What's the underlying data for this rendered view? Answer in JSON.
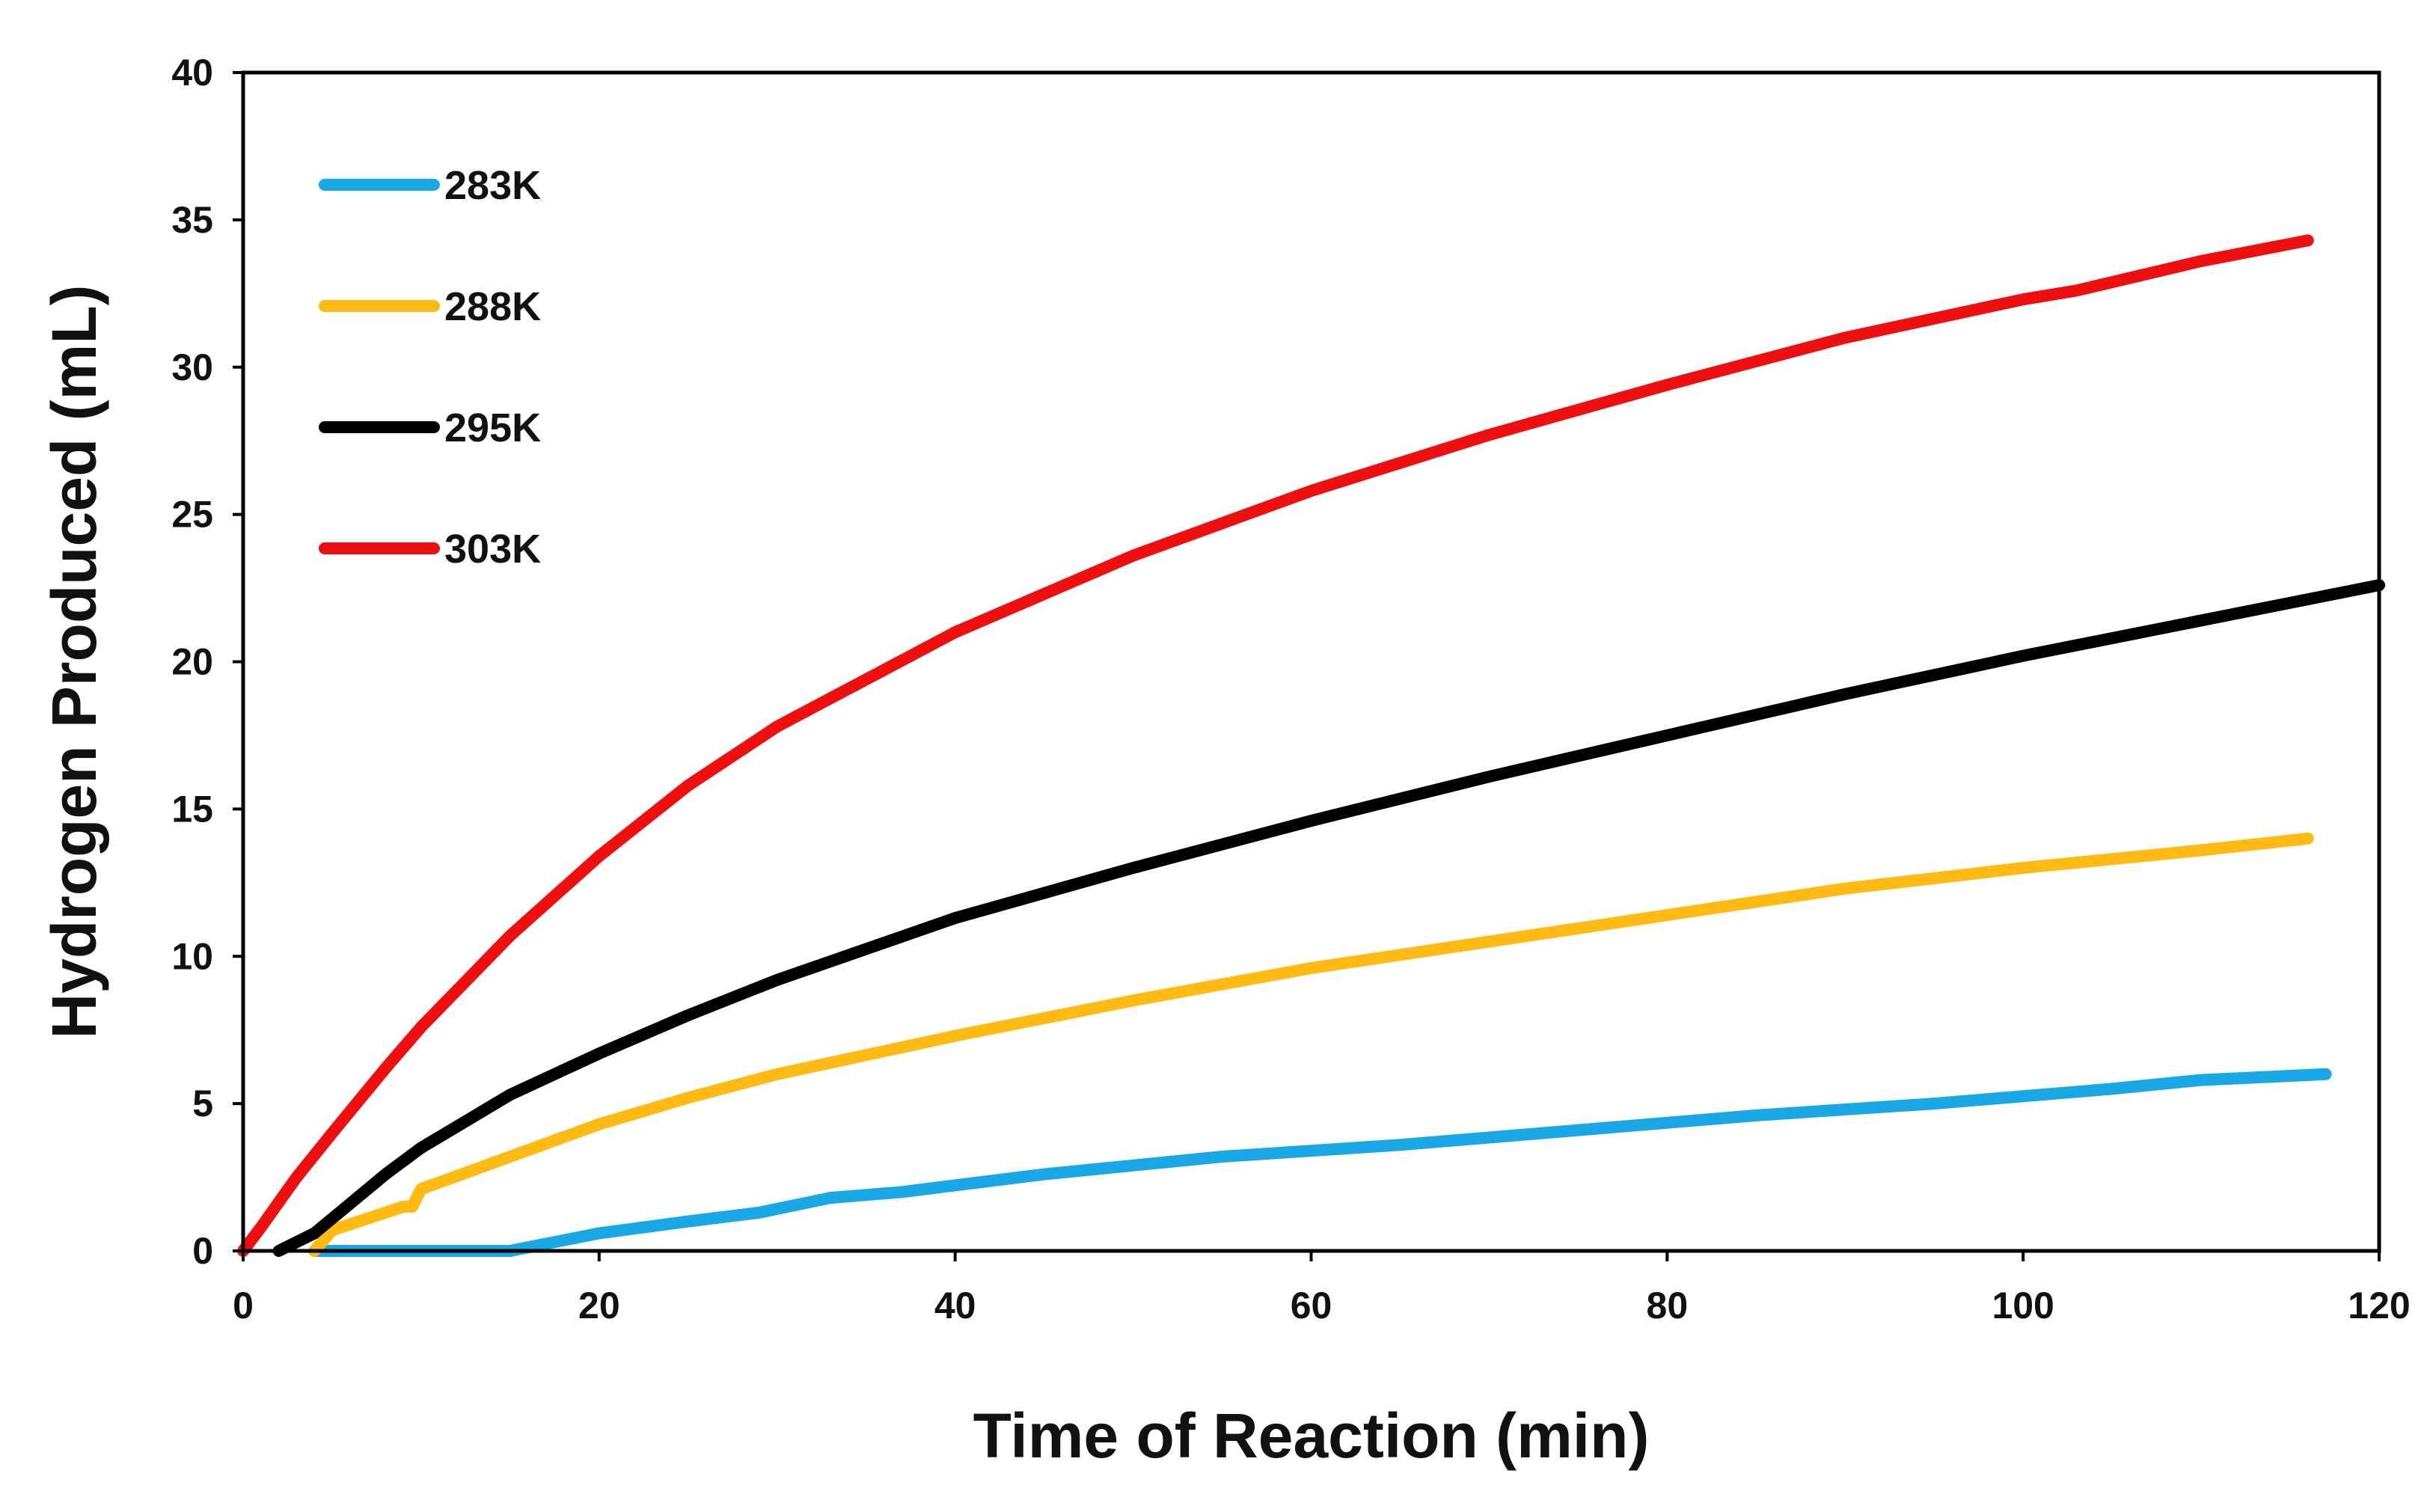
{
  "chart_data": {
    "type": "line",
    "title": "",
    "xlabel": "Time of Reaction (min)",
    "ylabel": "Hydrogen Produced (mL)",
    "xlim": [
      0,
      120
    ],
    "ylim": [
      0,
      40
    ],
    "xticks": [
      "0",
      "20",
      "40",
      "60",
      "80",
      "100",
      "120"
    ],
    "yticks": [
      "0",
      "5",
      "10",
      "15",
      "20",
      "25",
      "30",
      "35",
      "40"
    ],
    "grid": false,
    "legend_position": "top-left",
    "series": [
      {
        "name": "283K",
        "color": "#1aa7e6",
        "x": [
          4,
          10,
          15,
          20,
          25,
          29,
          33,
          37,
          45,
          55,
          65,
          75,
          85,
          95,
          105,
          110,
          117
        ],
        "y": [
          0,
          0,
          0,
          0.6,
          1.0,
          1.3,
          1.8,
          2.0,
          2.6,
          3.2,
          3.6,
          4.1,
          4.6,
          5.0,
          5.5,
          5.8,
          6.0
        ]
      },
      {
        "name": "288K",
        "color": "#ffbb14",
        "x": [
          4,
          5,
          7,
          9,
          9.5,
          10,
          15,
          20,
          25,
          30,
          40,
          50,
          60,
          70,
          80,
          90,
          100,
          110,
          116
        ],
        "y": [
          0,
          0.7,
          1.1,
          1.5,
          1.5,
          2.1,
          3.2,
          4.3,
          5.2,
          6.0,
          7.3,
          8.5,
          9.6,
          10.5,
          11.4,
          12.3,
          13.0,
          13.6,
          14.0
        ]
      },
      {
        "name": "295K",
        "color": "#000000",
        "x": [
          2,
          4,
          6,
          8,
          10,
          15,
          20,
          25,
          30,
          40,
          50,
          60,
          70,
          80,
          90,
          100,
          110,
          120
        ],
        "y": [
          0,
          0.6,
          1.6,
          2.6,
          3.5,
          5.3,
          6.7,
          8.0,
          9.2,
          11.3,
          13.0,
          14.6,
          16.1,
          17.5,
          18.9,
          20.2,
          21.4,
          22.6
        ]
      },
      {
        "name": "303K",
        "color": "#ee1010",
        "x": [
          0,
          1,
          3,
          5,
          8,
          10,
          15,
          20,
          25,
          30,
          40,
          50,
          60,
          70,
          80,
          90,
          100,
          103,
          110,
          116
        ],
        "y": [
          0,
          0.8,
          2.5,
          4.0,
          6.2,
          7.6,
          10.7,
          13.4,
          15.8,
          17.8,
          21.0,
          23.6,
          25.8,
          27.7,
          29.4,
          31.0,
          32.3,
          32.6,
          33.6,
          34.3
        ]
      }
    ]
  }
}
